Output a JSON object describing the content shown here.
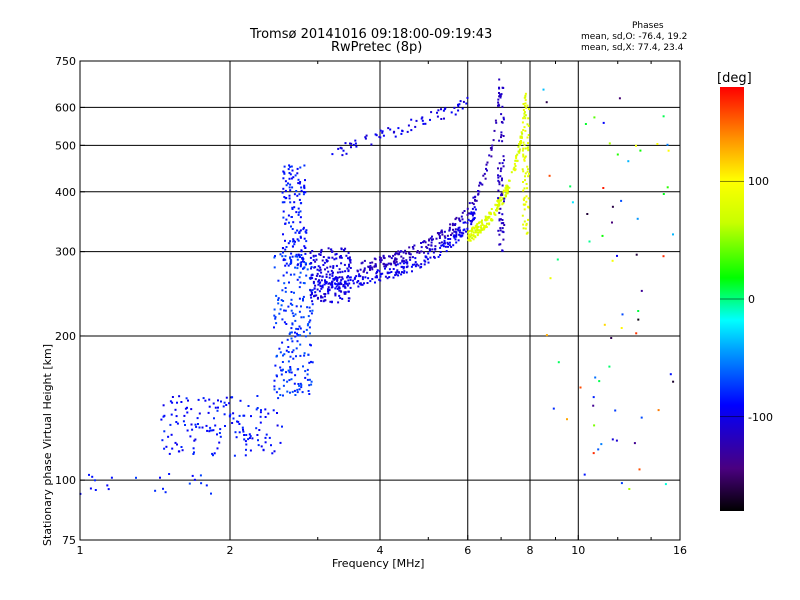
{
  "header": {
    "title_line1": "Tromsø 20141016 09:18:00-09:19:43",
    "title_line2": "RwPretec (8p)",
    "phases_heading": "Phases",
    "phases_o": "mean, sd,O: -76.4, 19.2",
    "phases_x": "mean, sd,X: 77.4, 23.4"
  },
  "chart_data": {
    "type": "scatter",
    "xlabel": "Frequency [MHz]",
    "ylabel": "Stationary phase Virtual Height [km]",
    "x_scale": "log",
    "y_scale": "log",
    "xlim": [
      1,
      16
    ],
    "ylim": [
      75,
      750
    ],
    "xticks": [
      1,
      2,
      4,
      6,
      8,
      10,
      16
    ],
    "yticks": [
      75,
      100,
      200,
      300,
      400,
      500,
      600,
      750
    ],
    "grid": true,
    "grid_x": [
      2,
      4,
      6,
      8,
      10
    ],
    "grid_y": [
      100,
      200,
      300,
      400,
      500,
      600
    ],
    "colorbar": {
      "label": "[deg]",
      "ticks": [
        100,
        0,
        -100
      ],
      "range": [
        -180,
        180
      ],
      "colormap": "rainbow (black-purple-blue-cyan-green-yellow-orange-red)"
    },
    "point_clouds": [
      {
        "shape": "rect",
        "fmin": 1.45,
        "fmax": 2.55,
        "hmin": 112,
        "hmax": 150,
        "n": 160,
        "phase": -88,
        "spread": 12
      },
      {
        "shape": "rect",
        "fmin": 2.45,
        "fmax": 2.95,
        "hmin": 150,
        "hmax": 300,
        "n": 220,
        "phase": -75,
        "spread": 12
      },
      {
        "shape": "rect",
        "fmin": 2.55,
        "fmax": 2.85,
        "hmin": 280,
        "hmax": 455,
        "n": 140,
        "phase": -85,
        "spread": 12
      },
      {
        "shape": "rect",
        "fmin": 2.9,
        "fmax": 3.5,
        "hmin": 235,
        "hmax": 305,
        "n": 190,
        "phase": -105,
        "spread": 10
      },
      {
        "shape": "rect",
        "fmin": 1.0,
        "fmax": 1.85,
        "hmin": 93,
        "hmax": 103,
        "n": 22,
        "phase": -82,
        "spread": 12
      },
      {
        "shape": "curve",
        "fmin": 3.0,
        "fmax": 6.3,
        "h0": 240,
        "fc": 7.05,
        "n": 230,
        "phase": -98,
        "spread": 10
      },
      {
        "shape": "curve",
        "fmin": 3.6,
        "fmax": 6.95,
        "h0": 255,
        "fc": 7.05,
        "n": 200,
        "phase": -118,
        "spread": 10
      },
      {
        "shape": "curve",
        "fmin": 6.0,
        "fmax": 7.85,
        "h0": 255,
        "fc": 8.0,
        "n": 200,
        "phase": 78,
        "spread": 14
      },
      {
        "shape": "vertical",
        "f": 7.0,
        "hmin": 300,
        "hmax": 660,
        "n": 70,
        "phase": -115,
        "spread": 8
      },
      {
        "shape": "vertical",
        "f": 7.85,
        "hmin": 320,
        "hmax": 650,
        "n": 70,
        "phase": 85,
        "spread": 10
      },
      {
        "shape": "upper-band",
        "fmin": 3.2,
        "fmax": 6.0,
        "hmin": 480,
        "hmax": 610,
        "n": 70,
        "phase": -100,
        "spread": 10
      },
      {
        "shape": "sparse",
        "fmin": 8.5,
        "fmax": 15.5,
        "hmin": 95,
        "hmax": 690,
        "n": 70,
        "phase": 0,
        "spread": 180
      }
    ]
  }
}
